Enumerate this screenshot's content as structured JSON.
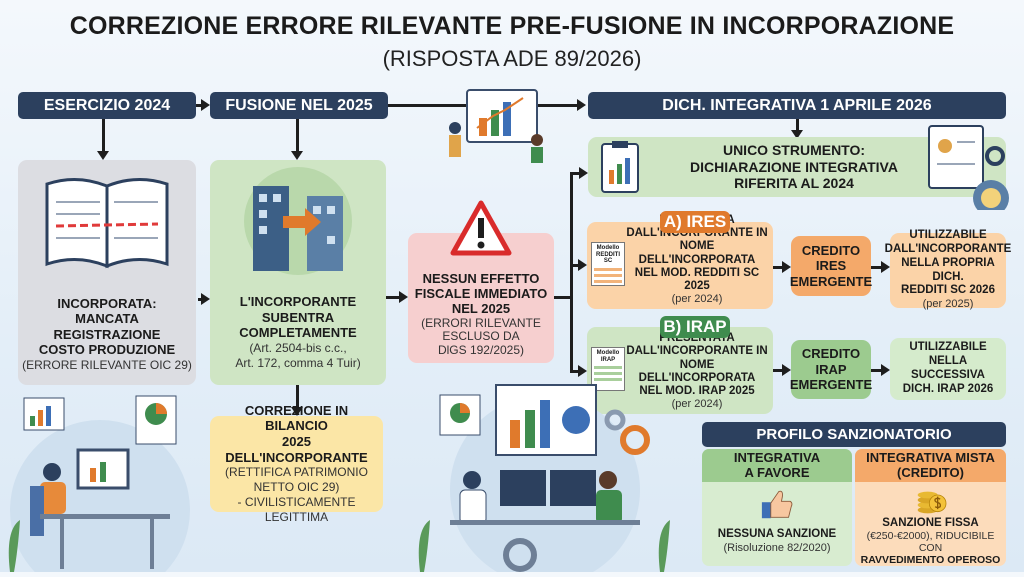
{
  "title": "CORREZIONE ERRORE RILEVANTE PRE-FUSIONE IN INCORPORAZIONE",
  "subtitle": "(RISPOSTA ADE 89/2026)",
  "headers": {
    "col1": "ESERCIZIO 2024",
    "col2": "FUSIONE NEL 2025",
    "col3": "DICH. INTEGRATIVA 1 APRILE 2026"
  },
  "box_2024": {
    "title": "INCORPORATA:\nMANCATA REGISTRAZIONE\nCOSTO PRODUZIONE",
    "note": "(ERRORE RILEVANTE OIC 29)"
  },
  "box_fusione": {
    "title": "L'INCORPORANTE\nSUBENTRA COMPLETAMENTE",
    "note": "(Art. 2504-bis c.c.,\nArt. 172, comma 4 Tuir)"
  },
  "box_bilancio": {
    "title": "CORREZIONE IN BILANCIO\n2025 DELL'INCORPORANTE",
    "note": "(RETTIFICA PATRIMONIO\nNETTO OIC 29)\n- CIVILISTICAMENTE LEGITTIMA"
  },
  "box_effetto": {
    "title": "NESSUN EFFETTO\nFISCALE IMMEDIATO\nNEL 2025",
    "note": "(ERRORI RILEVANTE\nESCLUSO DA\nDlGS 192/2025)"
  },
  "unico": {
    "title": "UNICO STRUMENTO:\nDICHIARAZIONE INTEGRATIVA\nRIFERITA AL 2024"
  },
  "ires": {
    "tag": "A) IRES",
    "doc_label": "Modello\nREDDITI SC",
    "text": "PRESENTATA\nDALL'INCORPORANTE IN\nNOME DELL'INCORPORATA\nNEL MOD. REDDITI SC 2025",
    "note": "(per 2024)",
    "credit": "CREDITO\nIRES\nEMERGENTE",
    "use": "UTILIZZABILE\nDALL'INCORPORANTE\nNELLA PROPRIA DICH.\nREDDITI SC 2026",
    "use_note": "(per 2025)"
  },
  "irap": {
    "tag": "B) IRAP",
    "doc_label": "Modello\nIRAP",
    "text": "PRESENTATA\nDALL'INCORPORANTE IN\nNOME DELL'INCORPORATA\nNEL MOD. IRAP 2025",
    "note": "(per 2024)",
    "credit": "CREDITO\nIRAP\nEMERGENTE",
    "use": "UTILIZZABILE\nNELLA SUCCESSIVA\nDICH. IRAP 2026"
  },
  "sanzioni": {
    "header": "PROFILO SANZIONATORIO",
    "favore": {
      "title": "INTEGRATIVA\nA FAVORE",
      "result": "NESSUNA SANZIONE",
      "note": "(Risoluzione 82/2020)"
    },
    "mista": {
      "title": "INTEGRATIVA MISTA\n(CREDITO)",
      "result": "SANZIONE FISSA",
      "note": "(€250-€2000), RIDUCIBILE CON",
      "note2": "RAVVEDIMENTO OPEROSO"
    }
  },
  "colors": {
    "navy": "#2c405e",
    "gray_box": "#dcdde2",
    "green_box": "#cfe5c4",
    "pink_box": "#f6cfcf",
    "yellow_box": "#fbe6a6",
    "orange_box": "#fbd3a8",
    "orange_tag": "#e07a2c",
    "green_tag": "#3f8c4e"
  }
}
